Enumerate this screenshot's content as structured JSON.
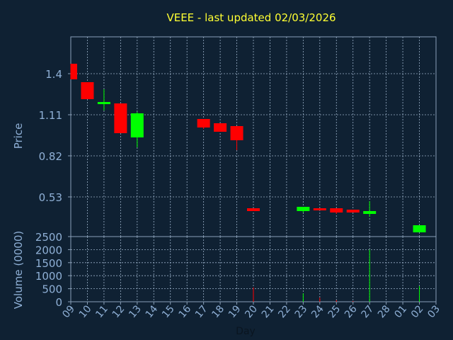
{
  "chart_data": {
    "type": "candlestick",
    "title": "VEEE - last updated 02/03/2026",
    "xlabel": "Day",
    "ylabel_price": "Price",
    "ylabel_volume": "Volume (0000)",
    "price_ticks": [
      "0.53",
      "0.82",
      "1.11",
      "1.4"
    ],
    "price_tick_values": [
      0.53,
      0.82,
      1.11,
      1.4
    ],
    "price_range": [
      0.25,
      1.66
    ],
    "volume_ticks": [
      "0",
      "500",
      "1000",
      "1500",
      "2000",
      "2500"
    ],
    "volume_tick_values": [
      0,
      500,
      1000,
      1500,
      2000,
      2500
    ],
    "volume_range": [
      0,
      2500
    ],
    "x_tick_labels": [
      "09",
      "10",
      "11",
      "12",
      "13",
      "14",
      "15",
      "16",
      "17",
      "18",
      "19",
      "20",
      "21",
      "22",
      "23",
      "24",
      "25",
      "26",
      "27",
      "28",
      "01",
      "02",
      "03"
    ],
    "grid": true,
    "colors": {
      "up": "#00ff00",
      "down": "#ff0000",
      "background": "#0f2133",
      "text": "#8fb0d6",
      "title": "#ffff33",
      "grid": "#9ab0c8",
      "axis": "#8aa0b8"
    },
    "candles": [
      {
        "day": "09",
        "open": 1.47,
        "high": 1.47,
        "low": 1.36,
        "close": 1.36,
        "volume": 0
      },
      {
        "day": "10",
        "open": 1.34,
        "high": 1.34,
        "low": 1.22,
        "close": 1.22,
        "volume": 0
      },
      {
        "day": "11",
        "open": 1.19,
        "high": 1.29,
        "low": 1.14,
        "close": 1.2,
        "volume": 0
      },
      {
        "day": "12",
        "open": 1.19,
        "high": 1.19,
        "low": 0.98,
        "close": 0.98,
        "volume": 0
      },
      {
        "day": "13",
        "open": 0.95,
        "high": 1.13,
        "low": 0.88,
        "close": 1.12,
        "volume": 0
      },
      {
        "day": "17",
        "open": 1.08,
        "high": 1.08,
        "low": 1.01,
        "close": 1.02,
        "volume": 0
      },
      {
        "day": "18",
        "open": 1.05,
        "high": 1.05,
        "low": 0.99,
        "close": 0.99,
        "volume": 0
      },
      {
        "day": "19",
        "open": 1.03,
        "high": 1.03,
        "low": 0.86,
        "close": 0.93,
        "volume": 0
      },
      {
        "day": "20",
        "open": 0.45,
        "high": 0.45,
        "low": 0.43,
        "close": 0.43,
        "volume": 550
      },
      {
        "day": "23",
        "open": 0.43,
        "high": 0.46,
        "low": 0.42,
        "close": 0.46,
        "volume": 320
      },
      {
        "day": "24",
        "open": 0.45,
        "high": 0.45,
        "low": 0.44,
        "close": 0.44,
        "volume": 160
      },
      {
        "day": "25",
        "open": 0.45,
        "high": 0.45,
        "low": 0.41,
        "close": 0.42,
        "volume": 60
      },
      {
        "day": "26",
        "open": 0.44,
        "high": 0.44,
        "low": 0.42,
        "close": 0.42,
        "volume": 30
      },
      {
        "day": "27",
        "open": 0.41,
        "high": 0.5,
        "low": 0.39,
        "close": 0.43,
        "volume": 2000
      },
      {
        "day": "02",
        "open": 0.28,
        "high": 0.33,
        "low": 0.28,
        "close": 0.33,
        "volume": 600
      }
    ]
  }
}
